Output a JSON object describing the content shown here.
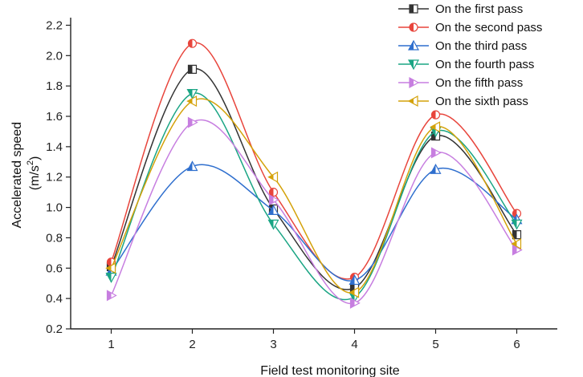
{
  "chart_data": {
    "type": "line",
    "title": "",
    "xlabel": "Field test monitoring site",
    "ylabel_line1": "Accelerated speed",
    "ylabel_line2_base": "(m/s",
    "ylabel_line2_sup": "2",
    "ylabel_line2_end": ")",
    "x": [
      1,
      2,
      3,
      4,
      5,
      6
    ],
    "xlim": [
      0.5,
      6.5
    ],
    "ylim": [
      0.2,
      2.25
    ],
    "yticks": [
      0.2,
      0.4,
      0.6,
      0.8,
      1.0,
      1.2,
      1.4,
      1.6,
      1.8,
      2.0,
      2.2
    ],
    "legend_position": "top-right",
    "series": [
      {
        "name": "On the first pass",
        "color": "#333333",
        "marker": "square",
        "values": [
          0.61,
          1.91,
          0.99,
          0.47,
          1.47,
          0.82
        ]
      },
      {
        "name": "On the second pass",
        "color": "#e8453c",
        "marker": "circle",
        "values": [
          0.64,
          2.08,
          1.1,
          0.54,
          1.61,
          0.96
        ]
      },
      {
        "name": "On the third pass",
        "color": "#2f6fce",
        "marker": "triangle-up",
        "values": [
          0.58,
          1.27,
          0.98,
          0.52,
          1.25,
          0.92
        ]
      },
      {
        "name": "On the fourth pass",
        "color": "#1aa584",
        "marker": "triangle-down",
        "values": [
          0.54,
          1.75,
          0.89,
          0.41,
          1.5,
          0.89
        ]
      },
      {
        "name": "On the fifth pass",
        "color": "#c77ee0",
        "marker": "triangle-right",
        "values": [
          0.42,
          1.56,
          1.05,
          0.37,
          1.36,
          0.72
        ]
      },
      {
        "name": "On the sixth pass",
        "color": "#d4a20a",
        "marker": "triangle-left",
        "values": [
          0.6,
          1.7,
          1.2,
          0.44,
          1.53,
          0.76
        ]
      }
    ]
  }
}
